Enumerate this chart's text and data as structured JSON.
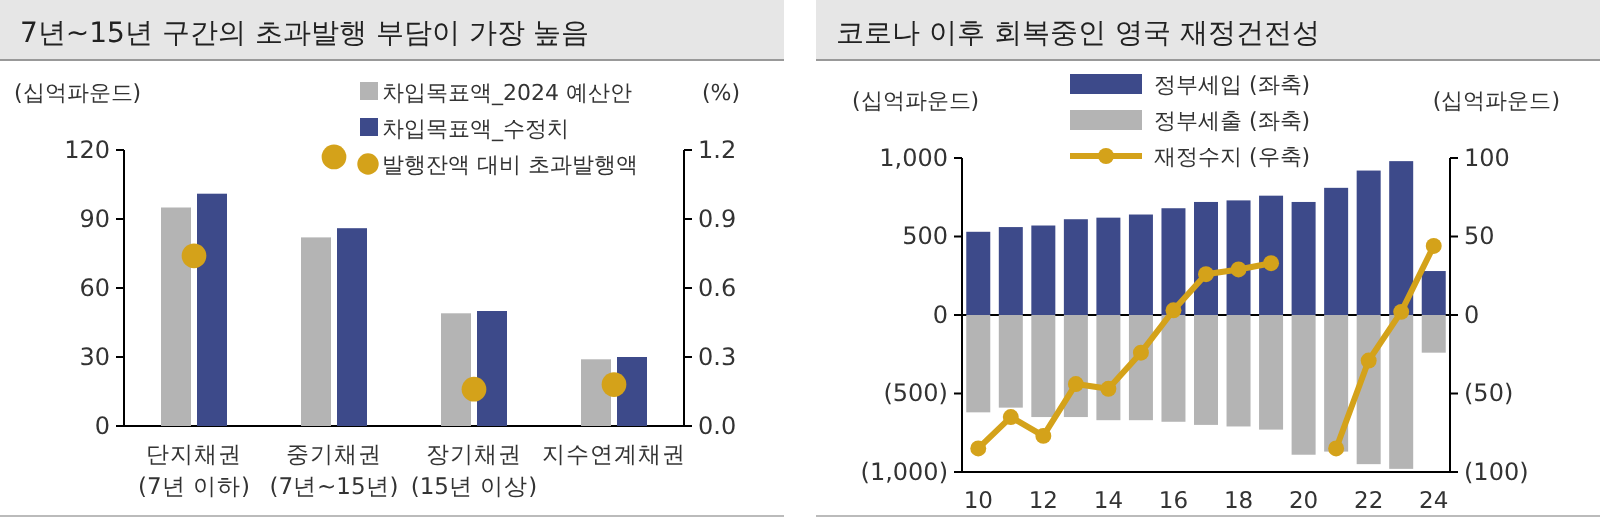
{
  "chart_data": [
    {
      "type": "bar",
      "title": "7년~15년 구간의 초과발행 부담이 가장 높음",
      "ylabel": "(십억파운드)",
      "y2label": "(%)",
      "categories": [
        "단지채권\n(7년 이하)",
        "중기채권\n(7년~15년)",
        "장기채권\n(15년 이상)",
        "지수연계채권"
      ],
      "series": [
        {
          "name": "차입목표액_2024 예산안",
          "color": "#b4b4b4",
          "values": [
            95,
            82,
            49,
            29
          ]
        },
        {
          "name": "차입목표액_수정치",
          "color": "#3d4a8a",
          "values": [
            101,
            86,
            50,
            30
          ]
        },
        {
          "name": "발행잔액 대비 초과발행액",
          "type": "scatter",
          "axis": "y2",
          "color": "#d4a21a",
          "values": [
            0.74,
            1.17,
            0.16,
            0.18
          ]
        }
      ],
      "ylim": [
        0,
        120
      ],
      "yticks": [
        0,
        30,
        60,
        90,
        120
      ],
      "y2lim": [
        0,
        1.2
      ],
      "y2ticks": [
        {
          "value": 0,
          "label": "0.0"
        },
        0.3,
        0.6,
        0.9,
        1.2
      ],
      "marker": "circle",
      "legend": "top right",
      "grid": false
    },
    {
      "type": "bar",
      "title": "코로나 이후 회복중인 영국 재정건전성",
      "ylabel": "(십억파운드)",
      "y2label": "(십억파운드)",
      "categories": [
        "10",
        null,
        "12",
        null,
        "14",
        null,
        "16",
        null,
        "18",
        null,
        "20",
        null,
        "22",
        null,
        "24"
      ],
      "stacked": true,
      "series": [
        {
          "name": "정부세입 (좌축)",
          "color": "#3d4a8a",
          "values": [
            530,
            560,
            570,
            610,
            620,
            640,
            680,
            720,
            730,
            760,
            720,
            810,
            920,
            980,
            280
          ]
        },
        {
          "name": "정부세출 (좌축)",
          "color": "#b4b4b4",
          "values": [
            -620,
            -590,
            -650,
            -650,
            -670,
            -670,
            -680,
            -700,
            -710,
            -730,
            -890,
            -870,
            -950,
            -980,
            -240
          ]
        },
        {
          "name": "재정수지 (우축)",
          "type": "line",
          "axis": "y2",
          "color": "#d4a21a",
          "values": [
            -85,
            -65,
            -77,
            -44,
            -47,
            -24,
            3,
            26,
            29,
            33,
            null,
            -85,
            -29,
            2,
            44
          ]
        }
      ],
      "ylim": [
        -1000,
        1000
      ],
      "yticks": [
        {
          "value": -1000,
          "label": "(1,000)"
        },
        {
          "value": -500,
          "label": "(500)"
        },
        0,
        500,
        {
          "value": 1000,
          "label": "1,000"
        }
      ],
      "y2lim": [
        -100,
        100
      ],
      "y2ticks": [
        {
          "value": -100,
          "label": "(100)"
        },
        {
          "value": -50,
          "label": "(50)"
        },
        0,
        50,
        100
      ],
      "ref_lines": [
        {
          "axis": "y",
          "value": 0,
          "color": "#000000"
        }
      ],
      "marker": "circle",
      "legend": "top",
      "grid": false
    }
  ]
}
